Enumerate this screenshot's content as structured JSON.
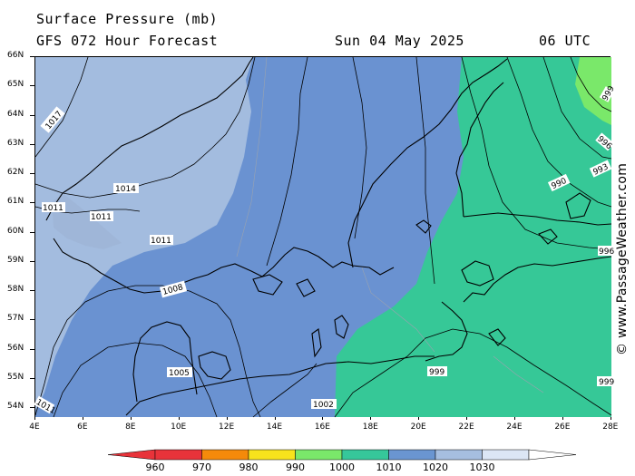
{
  "header": {
    "title": "Surface Pressure (mb)",
    "forecast": "GFS 072 Hour Forecast",
    "date": "Sun 04 May 2025",
    "time": "06 UTC"
  },
  "watermark": "© www.PassageWeather.com",
  "axes": {
    "lat_labels": [
      "66N",
      "65N",
      "64N",
      "63N",
      "62N",
      "61N",
      "60N",
      "59N",
      "58N",
      "57N",
      "56N",
      "55N",
      "54N"
    ],
    "lon_labels": [
      "4E",
      "6E",
      "8E",
      "10E",
      "12E",
      "14E",
      "16E",
      "18E",
      "20E",
      "22E",
      "24E",
      "26E",
      "28E"
    ]
  },
  "isobar_labels": [
    "1017",
    "1014",
    "1011",
    "1011",
    "1011",
    "1008",
    "1005",
    "1002",
    "999",
    "999",
    "996",
    "993",
    "990",
    "996",
    "999",
    "1011"
  ],
  "colorbar": {
    "labels": [
      "960",
      "970",
      "980",
      "990",
      "1000",
      "1010",
      "1020",
      "1030"
    ],
    "colors": [
      "#e8333a",
      "#f58a0a",
      "#f7e31c",
      "#7ae86a",
      "#36c79a",
      "#6a95d1",
      "#a6bee0",
      "#dce6f5"
    ]
  },
  "colors": {
    "band_1010_1020": "#a3bcdf",
    "band_1000_1010": "#6a92d1",
    "band_990_1000": "#36c897",
    "band_980_990": "#7ae86a"
  }
}
